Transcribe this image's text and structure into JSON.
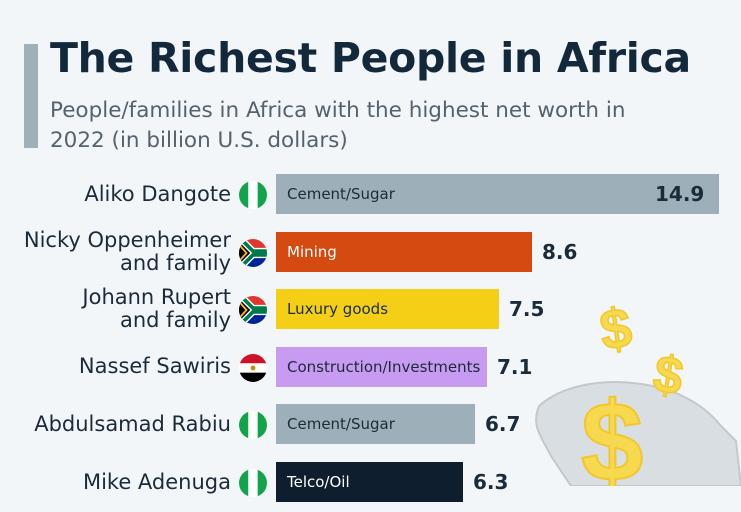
{
  "header": {
    "title": "The Richest People in Africa",
    "subtitle": "People/families in Africa with the highest net worth in 2022 (in billion U.S. dollars)"
  },
  "colors": {
    "cement_sugar": "#9db0b9",
    "mining": "#d44a10",
    "luxury_goods": "#f4cf15",
    "construction_investments": "#c79bf2",
    "telco_oil": "#0f1e2e",
    "nigeria_green": "#12a44a",
    "egypt_red": "#ce1126",
    "sa_green": "#007a4d",
    "sa_red": "#de3831",
    "sa_blue": "#002395",
    "dollar_gold": "#f6d94f"
  },
  "chart_data": {
    "type": "bar",
    "orientation": "horizontal",
    "title": "The Richest People in Africa",
    "subtitle": "People/families in Africa with the highest net worth in 2022 (in billion U.S. dollars)",
    "xlim": [
      0,
      14.9
    ],
    "rows": [
      {
        "name_lines": [
          "Aliko Dangote"
        ],
        "flag": "nigeria-flag-icon",
        "sector": "Cement/Sugar",
        "value": 14.9,
        "color": "#9db0b9",
        "label_color": "#1c2b39",
        "value_inside": true
      },
      {
        "name_lines": [
          "Nicky Oppenheimer",
          "and family"
        ],
        "flag": "south-africa-flag-icon",
        "sector": "Mining",
        "value": 8.6,
        "color": "#d44a10",
        "label_color": "#ffffff",
        "value_inside": false
      },
      {
        "name_lines": [
          "Johann Rupert",
          "and family"
        ],
        "flag": "south-africa-flag-icon",
        "sector": "Luxury goods",
        "value": 7.5,
        "color": "#f4cf15",
        "label_color": "#1c2b39",
        "value_inside": false
      },
      {
        "name_lines": [
          "Nassef Sawiris"
        ],
        "flag": "egypt-flag-icon",
        "sector": "Construction/Investments",
        "value": 7.1,
        "color": "#c79bf2",
        "label_color": "#1c2b39",
        "value_inside": false
      },
      {
        "name_lines": [
          "Abdulsamad Rabiu"
        ],
        "flag": "nigeria-flag-icon",
        "sector": "Cement/Sugar",
        "value": 6.7,
        "color": "#9db0b9",
        "label_color": "#1c2b39",
        "value_inside": false
      },
      {
        "name_lines": [
          "Mike Adenuga"
        ],
        "flag": "nigeria-flag-icon",
        "sector": "Telco/Oil",
        "value": 6.3,
        "color": "#0f1e2e",
        "label_color": "#ffffff",
        "value_inside": false
      }
    ]
  }
}
